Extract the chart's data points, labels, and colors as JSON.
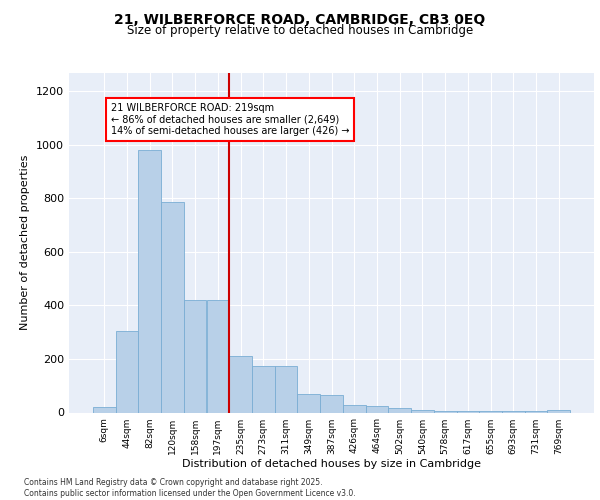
{
  "title_line1": "21, WILBERFORCE ROAD, CAMBRIDGE, CB3 0EQ",
  "title_line2": "Size of property relative to detached houses in Cambridge",
  "xlabel": "Distribution of detached houses by size in Cambridge",
  "ylabel": "Number of detached properties",
  "bar_labels": [
    "6sqm",
    "44sqm",
    "82sqm",
    "120sqm",
    "158sqm",
    "197sqm",
    "235sqm",
    "273sqm",
    "311sqm",
    "349sqm",
    "387sqm",
    "426sqm",
    "464sqm",
    "502sqm",
    "540sqm",
    "578sqm",
    "617sqm",
    "655sqm",
    "693sqm",
    "731sqm",
    "769sqm"
  ],
  "bar_values": [
    22,
    305,
    980,
    785,
    420,
    420,
    210,
    175,
    175,
    70,
    65,
    28,
    25,
    18,
    10,
    5,
    5,
    5,
    5,
    5,
    8
  ],
  "bar_color": "#b8d0e8",
  "bar_edge_color": "#7aadd4",
  "vline_color": "#cc0000",
  "annotation_box_text": "21 WILBERFORCE ROAD: 219sqm\n← 86% of detached houses are smaller (2,649)\n14% of semi-detached houses are larger (426) →",
  "ylim": [
    0,
    1270
  ],
  "yticks": [
    0,
    200,
    400,
    600,
    800,
    1000,
    1200
  ],
  "bg_color": "#e8eef8",
  "grid_color": "#ffffff",
  "footer_line1": "Contains HM Land Registry data © Crown copyright and database right 2025.",
  "footer_line2": "Contains public sector information licensed under the Open Government Licence v3.0."
}
